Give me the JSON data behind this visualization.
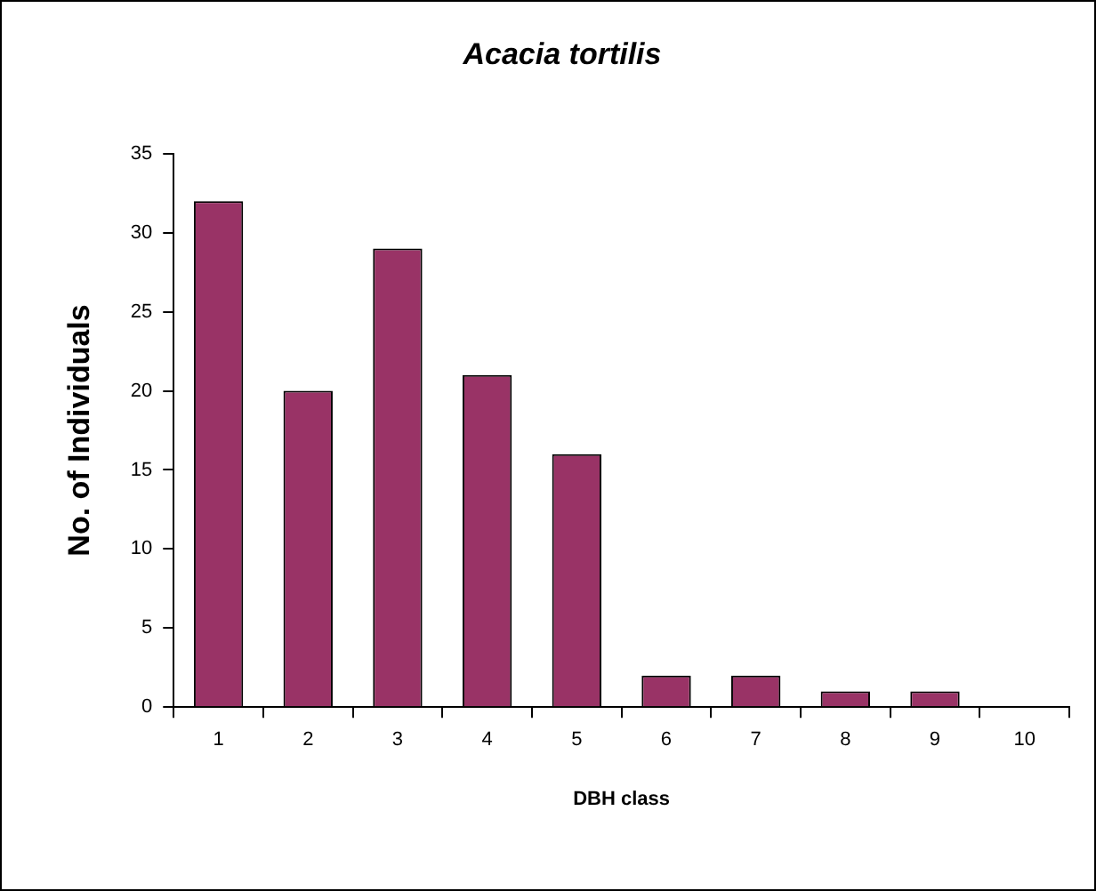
{
  "chart_data": {
    "type": "bar",
    "title": "Acacia tortilis",
    "xlabel": "DBH class",
    "ylabel": "No. of Individuals",
    "categories": [
      "1",
      "2",
      "3",
      "4",
      "5",
      "6",
      "7",
      "8",
      "9",
      "10"
    ],
    "values": [
      32,
      20,
      29,
      21,
      16,
      2,
      2,
      1,
      1,
      0
    ],
    "color": "#993366",
    "ylim": [
      0,
      35
    ],
    "yticks": [
      0,
      5,
      10,
      15,
      20,
      25,
      30,
      35
    ],
    "grid": false,
    "legend": false
  }
}
